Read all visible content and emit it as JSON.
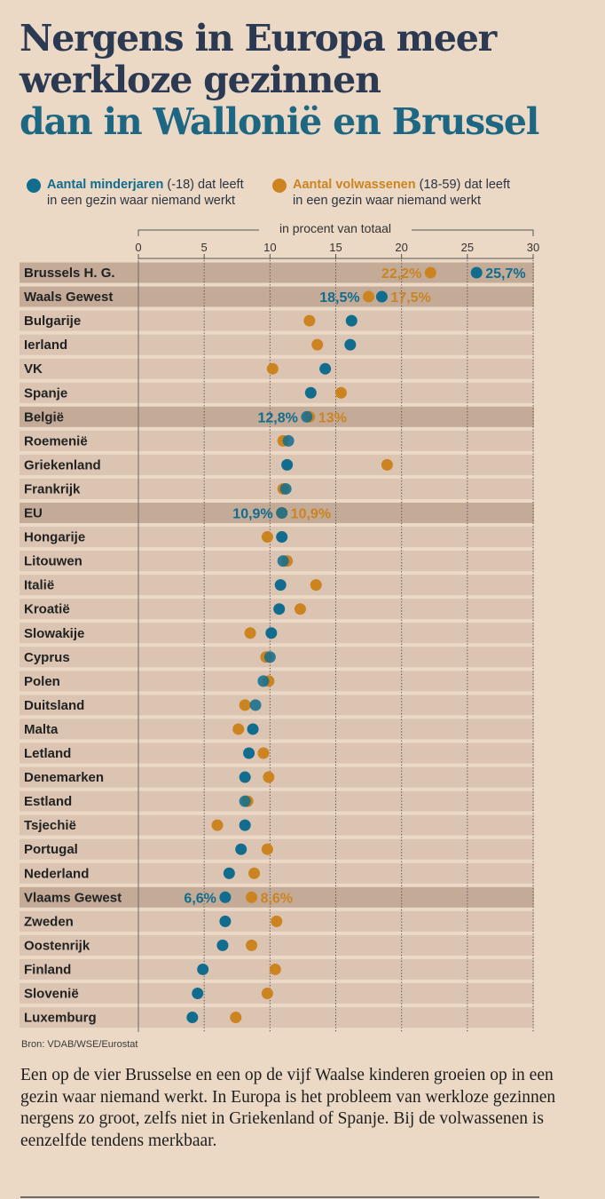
{
  "title": {
    "line1": "Nergens in Europa meer",
    "line2": "werkloze gezinnen",
    "line3": "dan in Wallonië en Brussel",
    "color_dark": "#2b3a52",
    "color_accent": "#1d6783"
  },
  "legend": {
    "minors": {
      "bold": "Aantal minderjaren",
      "rest1": " (-18) dat leeft",
      "rest2": "in een gezin waar niemand werkt"
    },
    "adults": {
      "bold": "Aantal volwassenen",
      "rest1": " (18-59) dat leeft",
      "rest2": "in een gezin waar niemand werkt"
    }
  },
  "colors": {
    "minors": "#116c8e",
    "adults": "#cc8421",
    "row_band": "#dbc4b1",
    "row_highlight": "#c3ab98",
    "overlap": "#3c5a4a"
  },
  "chart_data": {
    "type": "scatter",
    "axis_title": "in procent van totaal",
    "xlim": [
      0,
      30
    ],
    "xticks": [
      0,
      5,
      10,
      15,
      20,
      25,
      30
    ],
    "series": [
      {
        "name": "Aantal minderjaren (-18)",
        "key": "minors"
      },
      {
        "name": "Aantal volwassenen (18-59)",
        "key": "adults"
      }
    ],
    "rows": [
      {
        "label": "Brussels H. G.",
        "minors": 25.7,
        "adults": 22.2,
        "highlight": true,
        "minors_label": "25,7%",
        "adults_label": "22,2%"
      },
      {
        "label": "Waals Gewest",
        "minors": 18.5,
        "adults": 17.5,
        "highlight": true,
        "minors_label": "18,5%",
        "adults_label": "17,5%"
      },
      {
        "label": "Bulgarije",
        "minors": 16.2,
        "adults": 13.0
      },
      {
        "label": "Ierland",
        "minors": 16.1,
        "adults": 13.6
      },
      {
        "label": "VK",
        "minors": 14.2,
        "adults": 10.2
      },
      {
        "label": "Spanje",
        "minors": 13.1,
        "adults": 15.4
      },
      {
        "label": "België",
        "minors": 12.8,
        "adults": 13.0,
        "highlight": true,
        "minors_label": "12,8%",
        "adults_label": "13%"
      },
      {
        "label": "Roemenië",
        "minors": 11.4,
        "adults": 11.0
      },
      {
        "label": "Griekenland",
        "minors": 11.3,
        "adults": 18.9
      },
      {
        "label": "Frankrijk",
        "minors": 11.2,
        "adults": 11.0
      },
      {
        "label": "EU",
        "minors": 10.9,
        "adults": 10.9,
        "highlight": true,
        "minors_label": "10,9%",
        "adults_label": "10,9%"
      },
      {
        "label": "Hongarije",
        "minors": 10.9,
        "adults": 9.8
      },
      {
        "label": "Litouwen",
        "minors": 11.0,
        "adults": 11.3
      },
      {
        "label": "Italië",
        "minors": 10.8,
        "adults": 13.5
      },
      {
        "label": "Kroatië",
        "minors": 10.7,
        "adults": 12.3
      },
      {
        "label": "Slowakije",
        "minors": 10.1,
        "adults": 8.5
      },
      {
        "label": "Cyprus",
        "minors": 10.0,
        "adults": 9.7
      },
      {
        "label": "Polen",
        "minors": 9.5,
        "adults": 9.9
      },
      {
        "label": "Duitsland",
        "minors": 8.9,
        "adults": 8.1
      },
      {
        "label": "Malta",
        "minors": 8.7,
        "adults": 7.6
      },
      {
        "label": "Letland",
        "minors": 8.4,
        "adults": 9.5
      },
      {
        "label": "Denemarken",
        "minors": 8.1,
        "adults": 9.9
      },
      {
        "label": "Estland",
        "minors": 8.1,
        "adults": 8.3
      },
      {
        "label": "Tsjechië",
        "minors": 8.1,
        "adults": 6.0
      },
      {
        "label": "Portugal",
        "minors": 7.8,
        "adults": 9.8
      },
      {
        "label": "Nederland",
        "minors": 6.9,
        "adults": 8.8
      },
      {
        "label": "Vlaams Gewest",
        "minors": 6.6,
        "adults": 8.6,
        "highlight": true,
        "minors_label": "6,6%",
        "adults_label": "8,6%"
      },
      {
        "label": "Zweden",
        "minors": 6.6,
        "adults": 10.5
      },
      {
        "label": "Oostenrijk",
        "minors": 6.4,
        "adults": 8.6
      },
      {
        "label": "Finland",
        "minors": 4.9,
        "adults": 10.4
      },
      {
        "label": "Slovenië",
        "minors": 4.5,
        "adults": 9.8
      },
      {
        "label": "Luxemburg",
        "minors": 4.1,
        "adults": 7.4
      }
    ]
  },
  "source": "Bron: VDAB/WSE/Eurostat",
  "body_text": "Een op de vier Brusselse en een op de vijf Waalse kinderen groeien op in een gezin waar niemand werkt. In Europa is het probleem van werkloze gezinnen nergens zo groot, zelfs niet in Griekenland of Spanje. Bij de volwassenen is eenzelfde tendens merkbaar."
}
